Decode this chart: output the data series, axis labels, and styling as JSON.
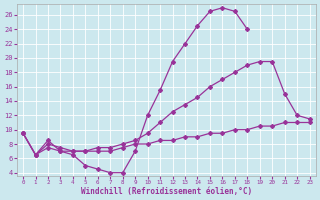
{
  "xlabel": "Windchill (Refroidissement éolien,°C)",
  "background_color": "#cce8ee",
  "line_color": "#993399",
  "xlim": [
    -0.5,
    23.5
  ],
  "ylim": [
    3.5,
    27.5
  ],
  "xticks": [
    0,
    1,
    2,
    3,
    4,
    5,
    6,
    7,
    8,
    9,
    10,
    11,
    12,
    13,
    14,
    15,
    16,
    17,
    18,
    19,
    20,
    21,
    22,
    23
  ],
  "yticks": [
    4,
    6,
    8,
    10,
    12,
    14,
    16,
    18,
    20,
    22,
    24,
    26
  ],
  "line1_x": [
    0,
    1,
    2,
    3,
    4,
    5,
    6,
    7,
    8,
    9,
    10,
    11,
    12,
    13,
    14,
    15,
    16,
    17,
    18
  ],
  "line1_y": [
    9.5,
    6.5,
    8.5,
    7.0,
    6.5,
    5.0,
    4.5,
    4.0,
    4.0,
    7.0,
    12.0,
    15.5,
    19.5,
    22.0,
    24.5,
    26.5,
    27.0,
    26.5,
    24.0
  ],
  "line2_x": [
    0,
    1,
    2,
    3,
    4,
    5,
    6,
    7,
    8,
    9,
    10,
    11,
    12,
    13,
    14,
    15,
    16,
    17,
    18,
    19,
    20,
    21,
    22,
    23
  ],
  "line2_y": [
    9.5,
    6.5,
    8.0,
    7.5,
    7.0,
    7.0,
    7.5,
    7.5,
    8.0,
    8.5,
    9.5,
    11.0,
    12.5,
    13.5,
    14.5,
    16.0,
    17.0,
    18.0,
    19.0,
    19.5,
    19.5,
    15.0,
    12.0,
    11.5
  ],
  "line3_x": [
    0,
    1,
    2,
    3,
    4,
    5,
    6,
    7,
    8,
    9,
    10,
    11,
    12,
    13,
    14,
    15,
    16,
    17,
    18,
    19,
    20,
    21,
    22,
    23
  ],
  "line3_y": [
    9.5,
    6.5,
    7.5,
    7.0,
    7.0,
    7.0,
    7.0,
    7.0,
    7.5,
    8.0,
    8.0,
    8.5,
    8.5,
    9.0,
    9.0,
    9.5,
    9.5,
    10.0,
    10.0,
    10.5,
    10.5,
    11.0,
    11.0,
    11.0
  ]
}
